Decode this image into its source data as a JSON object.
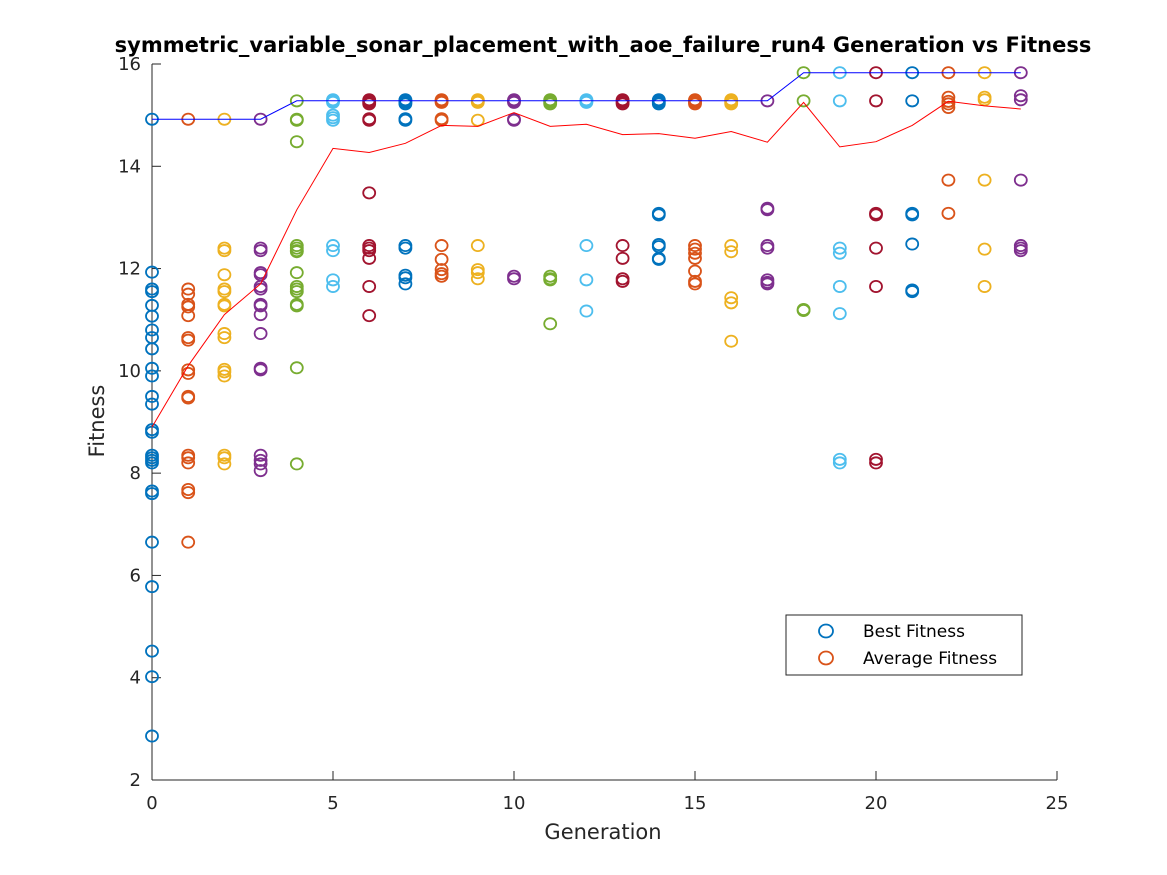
{
  "chart_data": {
    "type": "scatter",
    "title": "symmetric_variable_sonar_placement_with_aoe_failure_run4 Generation vs Fitness",
    "xlabel": "Generation",
    "ylabel": "Fitness",
    "xlim": [
      0,
      25
    ],
    "ylim": [
      2,
      16
    ],
    "xticks": [
      0,
      5,
      10,
      15,
      20,
      25
    ],
    "yticks": [
      2,
      4,
      6,
      8,
      10,
      12,
      14,
      16
    ],
    "grid": false,
    "legend": {
      "location": "lower-right",
      "entries": [
        "Best Fitness",
        "Average Fitness"
      ],
      "colors": [
        "#0072BD",
        "#D95319"
      ]
    },
    "generation_colors": [
      "#0072BD",
      "#D95319",
      "#EDB120",
      "#7E2F8E",
      "#77AC30",
      "#4DBEEE",
      "#A2142F"
    ],
    "lines": [
      {
        "label": "best",
        "color": "#0000FF",
        "x": [
          0,
          1,
          2,
          3,
          4,
          5,
          6,
          7,
          8,
          9,
          10,
          11,
          12,
          13,
          14,
          15,
          16,
          17,
          18,
          19,
          20,
          21,
          22,
          23,
          24
        ],
        "y": [
          14.92,
          14.92,
          14.92,
          14.92,
          15.28,
          15.28,
          15.28,
          15.28,
          15.28,
          15.28,
          15.28,
          15.28,
          15.28,
          15.28,
          15.28,
          15.28,
          15.28,
          15.28,
          15.83,
          15.83,
          15.83,
          15.83,
          15.83,
          15.83,
          15.83
        ]
      },
      {
        "label": "average",
        "color": "#FF0000",
        "x": [
          0,
          1,
          2,
          3,
          4,
          5,
          6,
          7,
          8,
          9,
          10,
          11,
          12,
          13,
          14,
          15,
          16,
          17,
          18,
          19,
          20,
          21,
          22,
          23,
          24
        ],
        "y": [
          8.9,
          10.1,
          11.1,
          11.7,
          13.15,
          14.35,
          14.27,
          14.45,
          14.8,
          14.78,
          15.05,
          14.78,
          14.82,
          14.62,
          14.64,
          14.55,
          14.68,
          14.47,
          15.25,
          14.38,
          14.48,
          14.8,
          15.27,
          15.18,
          15.12
        ]
      }
    ],
    "points": [
      {
        "generation": 0,
        "fitness": [
          14.92,
          11.93,
          11.6,
          11.55,
          11.28,
          11.07,
          10.8,
          10.65,
          10.43,
          10.05,
          9.9,
          9.5,
          9.35,
          8.85,
          8.8,
          8.35,
          8.3,
          8.25,
          8.2,
          7.65,
          7.6,
          6.65,
          5.78,
          4.52,
          4.02,
          2.86
        ]
      },
      {
        "generation": 1,
        "fitness": [
          14.92,
          11.6,
          11.5,
          11.3,
          11.25,
          11.08,
          10.65,
          10.6,
          10.02,
          9.95,
          9.5,
          9.47,
          8.35,
          8.3,
          8.2,
          7.68,
          7.62,
          6.65
        ]
      },
      {
        "generation": 2,
        "fitness": [
          14.92,
          12.4,
          12.35,
          11.88,
          11.6,
          11.55,
          11.3,
          11.27,
          10.73,
          10.65,
          10.03,
          9.98,
          9.9,
          8.35,
          8.3,
          8.18
        ]
      },
      {
        "generation": 3,
        "fitness": [
          14.92,
          12.4,
          12.35,
          11.92,
          11.88,
          11.65,
          11.6,
          11.3,
          11.27,
          11.1,
          10.73,
          10.05,
          10.02,
          8.35,
          8.25,
          8.18,
          8.05
        ]
      },
      {
        "generation": 4,
        "fitness": [
          15.28,
          14.92,
          14.9,
          14.48,
          12.45,
          12.4,
          12.35,
          12.33,
          11.92,
          11.65,
          11.6,
          11.55,
          11.3,
          11.27,
          10.06,
          8.18
        ]
      },
      {
        "generation": 5,
        "fitness": [
          15.3,
          15.28,
          15.25,
          15.0,
          14.95,
          14.9,
          12.45,
          12.35,
          11.78,
          11.65
        ]
      },
      {
        "generation": 6,
        "fitness": [
          15.3,
          15.28,
          15.25,
          15.22,
          14.93,
          14.9,
          13.48,
          12.45,
          12.4,
          12.35,
          12.2,
          11.65,
          11.08
        ]
      },
      {
        "generation": 7,
        "fitness": [
          15.3,
          15.28,
          15.25,
          15.22,
          14.93,
          14.9,
          12.45,
          12.4,
          11.87,
          11.82,
          11.7
        ]
      },
      {
        "generation": 8,
        "fitness": [
          15.3,
          15.28,
          15.25,
          14.93,
          14.9,
          12.45,
          12.18,
          11.98,
          11.9,
          11.85
        ]
      },
      {
        "generation": 9,
        "fitness": [
          15.3,
          15.28,
          15.25,
          14.9,
          12.45,
          11.98,
          11.92,
          11.8
        ]
      },
      {
        "generation": 10,
        "fitness": [
          15.3,
          15.28,
          15.25,
          14.92,
          14.9,
          11.85,
          11.8
        ]
      },
      {
        "generation": 11,
        "fitness": [
          15.3,
          15.28,
          15.25,
          15.22,
          11.85,
          11.8,
          11.78,
          10.92
        ]
      },
      {
        "generation": 12,
        "fitness": [
          15.3,
          15.28,
          15.25,
          12.45,
          11.78,
          11.17
        ]
      },
      {
        "generation": 13,
        "fitness": [
          15.3,
          15.28,
          15.25,
          15.22,
          12.45,
          12.2,
          11.8,
          11.75
        ]
      },
      {
        "generation": 14,
        "fitness": [
          15.3,
          15.28,
          15.25,
          15.22,
          13.08,
          13.05,
          12.47,
          12.43,
          12.2,
          12.18
        ]
      },
      {
        "generation": 15,
        "fitness": [
          15.3,
          15.28,
          15.25,
          15.22,
          12.45,
          12.38,
          12.3,
          12.2,
          11.95,
          11.75,
          11.7
        ]
      },
      {
        "generation": 16,
        "fitness": [
          15.3,
          15.28,
          15.25,
          15.22,
          12.45,
          12.33,
          11.43,
          11.33,
          10.58
        ]
      },
      {
        "generation": 17,
        "fitness": [
          15.28,
          13.18,
          13.15,
          12.45,
          12.4,
          11.78,
          11.73,
          11.7
        ]
      },
      {
        "generation": 18,
        "fitness": [
          15.83,
          15.28,
          11.2,
          11.18
        ]
      },
      {
        "generation": 19,
        "fitness": [
          15.83,
          15.28,
          12.4,
          12.3,
          11.65,
          11.12,
          8.27,
          8.2
        ]
      },
      {
        "generation": 20,
        "fitness": [
          15.83,
          15.28,
          13.08,
          13.05,
          12.4,
          11.65,
          8.27,
          8.2
        ]
      },
      {
        "generation": 21,
        "fitness": [
          15.83,
          15.28,
          13.08,
          13.05,
          12.48,
          11.58,
          11.55
        ]
      },
      {
        "generation": 22,
        "fitness": [
          15.83,
          15.35,
          15.27,
          15.22,
          15.15,
          13.73,
          13.08
        ]
      },
      {
        "generation": 23,
        "fitness": [
          15.83,
          15.35,
          15.3,
          13.73,
          12.38,
          11.65
        ]
      },
      {
        "generation": 24,
        "fitness": [
          15.83,
          15.38,
          15.3,
          13.73,
          12.45,
          12.4,
          12.35
        ]
      }
    ]
  }
}
